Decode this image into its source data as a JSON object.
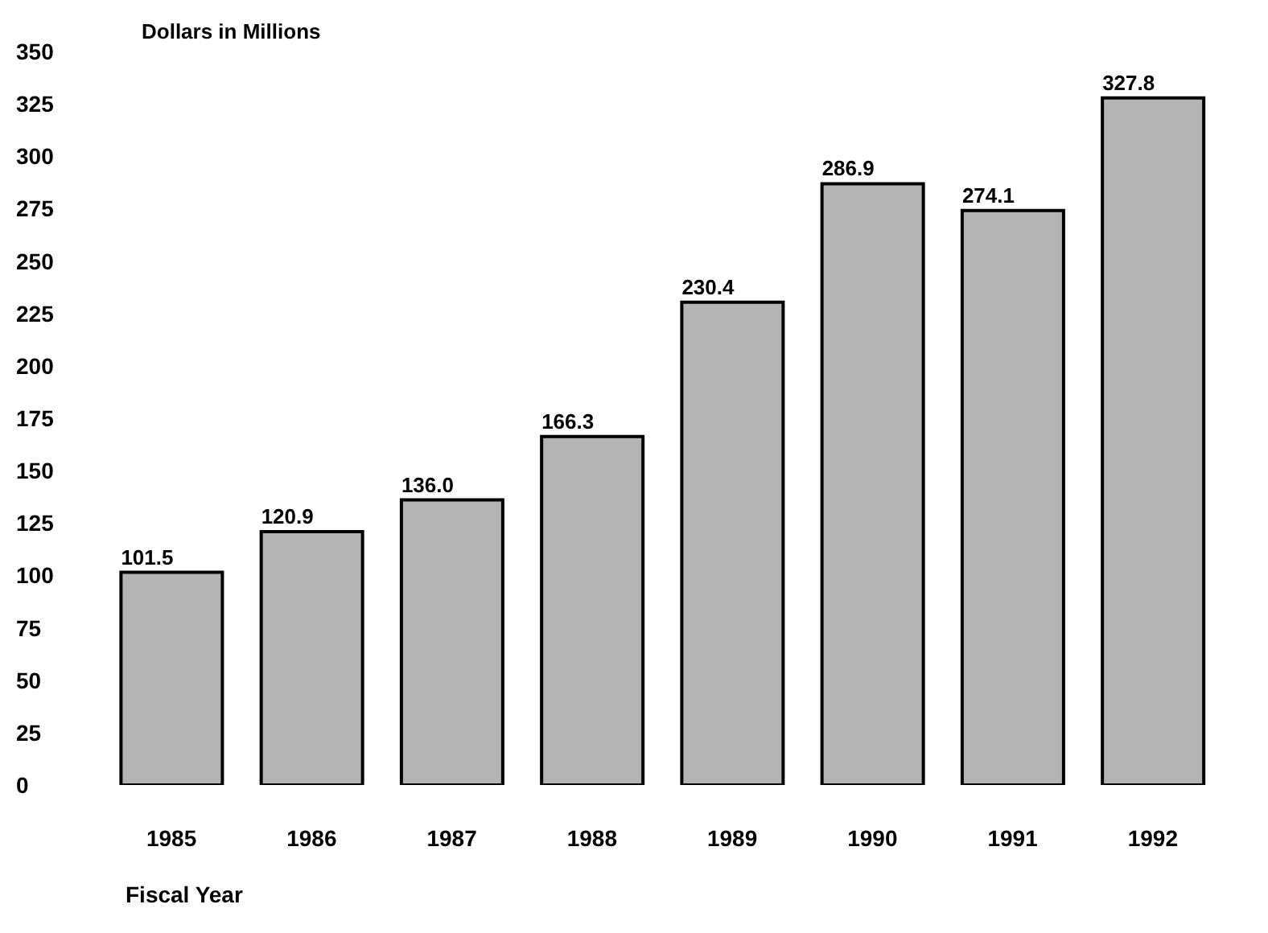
{
  "chart_data": {
    "type": "bar",
    "ylabel": "Dollars in Millions",
    "xlabel": "Fiscal Year",
    "categories": [
      "1985",
      "1986",
      "1987",
      "1988",
      "1989",
      "1990",
      "1991",
      "1992"
    ],
    "values": [
      101.5,
      120.9,
      136.0,
      166.3,
      230.4,
      286.9,
      274.1,
      327.8
    ],
    "value_labels": [
      "101.5",
      "120.9",
      "136.0",
      "166.3",
      "230.4",
      "286.9",
      "274.1",
      "327.8"
    ],
    "color": "#b4b4b4",
    "ylim": [
      0,
      350
    ],
    "yticks": [
      0,
      25,
      50,
      75,
      100,
      125,
      150,
      175,
      200,
      225,
      250,
      275,
      300,
      325,
      350
    ],
    "grid": false,
    "legend": false
  }
}
